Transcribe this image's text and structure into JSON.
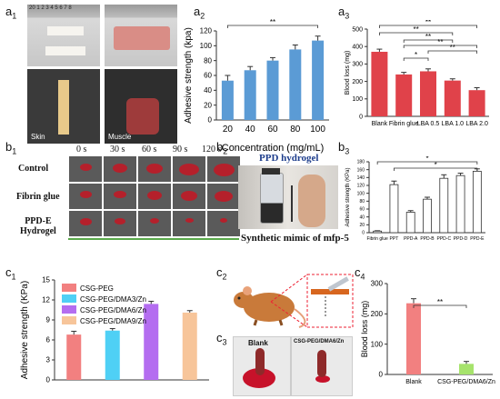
{
  "panels": {
    "a1": {
      "label": "a",
      "sub": "1",
      "ruler": "20 1 2 3 4 5 6 7 8",
      "tags": [
        "Skin",
        "Muscle"
      ]
    },
    "a2": {
      "label": "a",
      "sub": "2"
    },
    "a3": {
      "label": "a",
      "sub": "3"
    },
    "b1": {
      "label": "b",
      "sub": "1",
      "times": [
        "0 s",
        "30 s",
        "60 s",
        "90 s",
        "120 s"
      ],
      "rows": [
        "Control",
        "Fibrin glue",
        "PPD-E\nHydrogel"
      ]
    },
    "b2": {
      "label": "b",
      "sub": "2",
      "title": "PPD hydrogel",
      "caption": "Synthetic mimic of mfp-5"
    },
    "b3": {
      "label": "b",
      "sub": "3"
    },
    "c1": {
      "label": "c",
      "sub": "1"
    },
    "c2": {
      "label": "c",
      "sub": "2"
    },
    "c3": {
      "label": "c",
      "sub": "3",
      "tags": [
        "Blank",
        "CSG-PEG/DMA6/Zn"
      ]
    },
    "c4": {
      "label": "c",
      "sub": "4"
    }
  },
  "chart_data": [
    {
      "id": "a2",
      "type": "bar",
      "categories": [
        "20",
        "40",
        "60",
        "80",
        "100"
      ],
      "values": [
        53,
        67,
        80,
        95,
        107
      ],
      "errors": [
        7,
        5,
        4,
        6,
        6
      ],
      "xlabel": "Concentration (mg/mL)",
      "ylabel": "Adhesive strength (kpa)",
      "ylim": [
        0,
        120
      ],
      "yticks": [
        0,
        20,
        40,
        60,
        80,
        100,
        120
      ],
      "color": "#5b9bd5",
      "significance": [
        "**"
      ]
    },
    {
      "id": "a3",
      "type": "bar",
      "categories": [
        "Blank",
        "Fibrin glue",
        "LBA 0.5",
        "LBA 1.0",
        "LBA 2.0"
      ],
      "values": [
        370,
        240,
        258,
        205,
        150
      ],
      "errors": [
        15,
        12,
        14,
        10,
        14
      ],
      "ylabel": "Blood loss (mg)",
      "ylim": [
        0,
        500
      ],
      "yticks": [
        0,
        100,
        200,
        300,
        400,
        500
      ],
      "color": "#e0424a",
      "significance": [
        "**",
        "**",
        "*",
        "**",
        "**",
        "**"
      ]
    },
    {
      "id": "b3",
      "type": "bar",
      "categories": [
        "Fibrin glue",
        "PPT",
        "PPD-A",
        "PPD-B",
        "PPD-C",
        "PPD-D",
        "PPD-E"
      ],
      "values": [
        4,
        122,
        52,
        85,
        138,
        145,
        156
      ],
      "errors": [
        1,
        9,
        4,
        5,
        9,
        6,
        6
      ],
      "ylabel": "Adhesive strength (KPa)",
      "ylim": [
        0,
        180
      ],
      "yticks": [
        0,
        20,
        40,
        60,
        80,
        100,
        120,
        140,
        160,
        180
      ],
      "color": "#ffffff",
      "significance": [
        "*",
        "*"
      ]
    },
    {
      "id": "c1",
      "type": "bar",
      "categories": [
        "CSG-PEG",
        "CSG-PEG/DMA3/Zn",
        "CSG-PEG/DMA6/Zn",
        "CSG-PEG/DMA9/Zn"
      ],
      "values": [
        6.8,
        7.4,
        11.4,
        10.1
      ],
      "errors": [
        0.5,
        0.3,
        0.4,
        0.3
      ],
      "ylabel": "Adhesive strength (KPa)",
      "ylim": [
        0,
        15
      ],
      "yticks": [
        0,
        3,
        6,
        9,
        12,
        15
      ],
      "colors": [
        "#f28080",
        "#4fd0f5",
        "#b46df0",
        "#f7c59a"
      ],
      "legend": [
        "CSG-PEG",
        "CSG-PEG/DMA3/Zn",
        "CSG-PEG/DMA6/Zn",
        "CSG-PEG/DMA9/Zn"
      ]
    },
    {
      "id": "c4",
      "type": "bar",
      "categories": [
        "Blank",
        "CSG-PEG/DMA6/Zn"
      ],
      "values": [
        235,
        35
      ],
      "errors": [
        15,
        8
      ],
      "ylabel": "Blood loss (mg)",
      "ylim": [
        0,
        300
      ],
      "yticks": [
        0,
        100,
        200,
        300
      ],
      "colors": [
        "#f28080",
        "#a6e36c"
      ],
      "significance": [
        "**"
      ]
    }
  ]
}
